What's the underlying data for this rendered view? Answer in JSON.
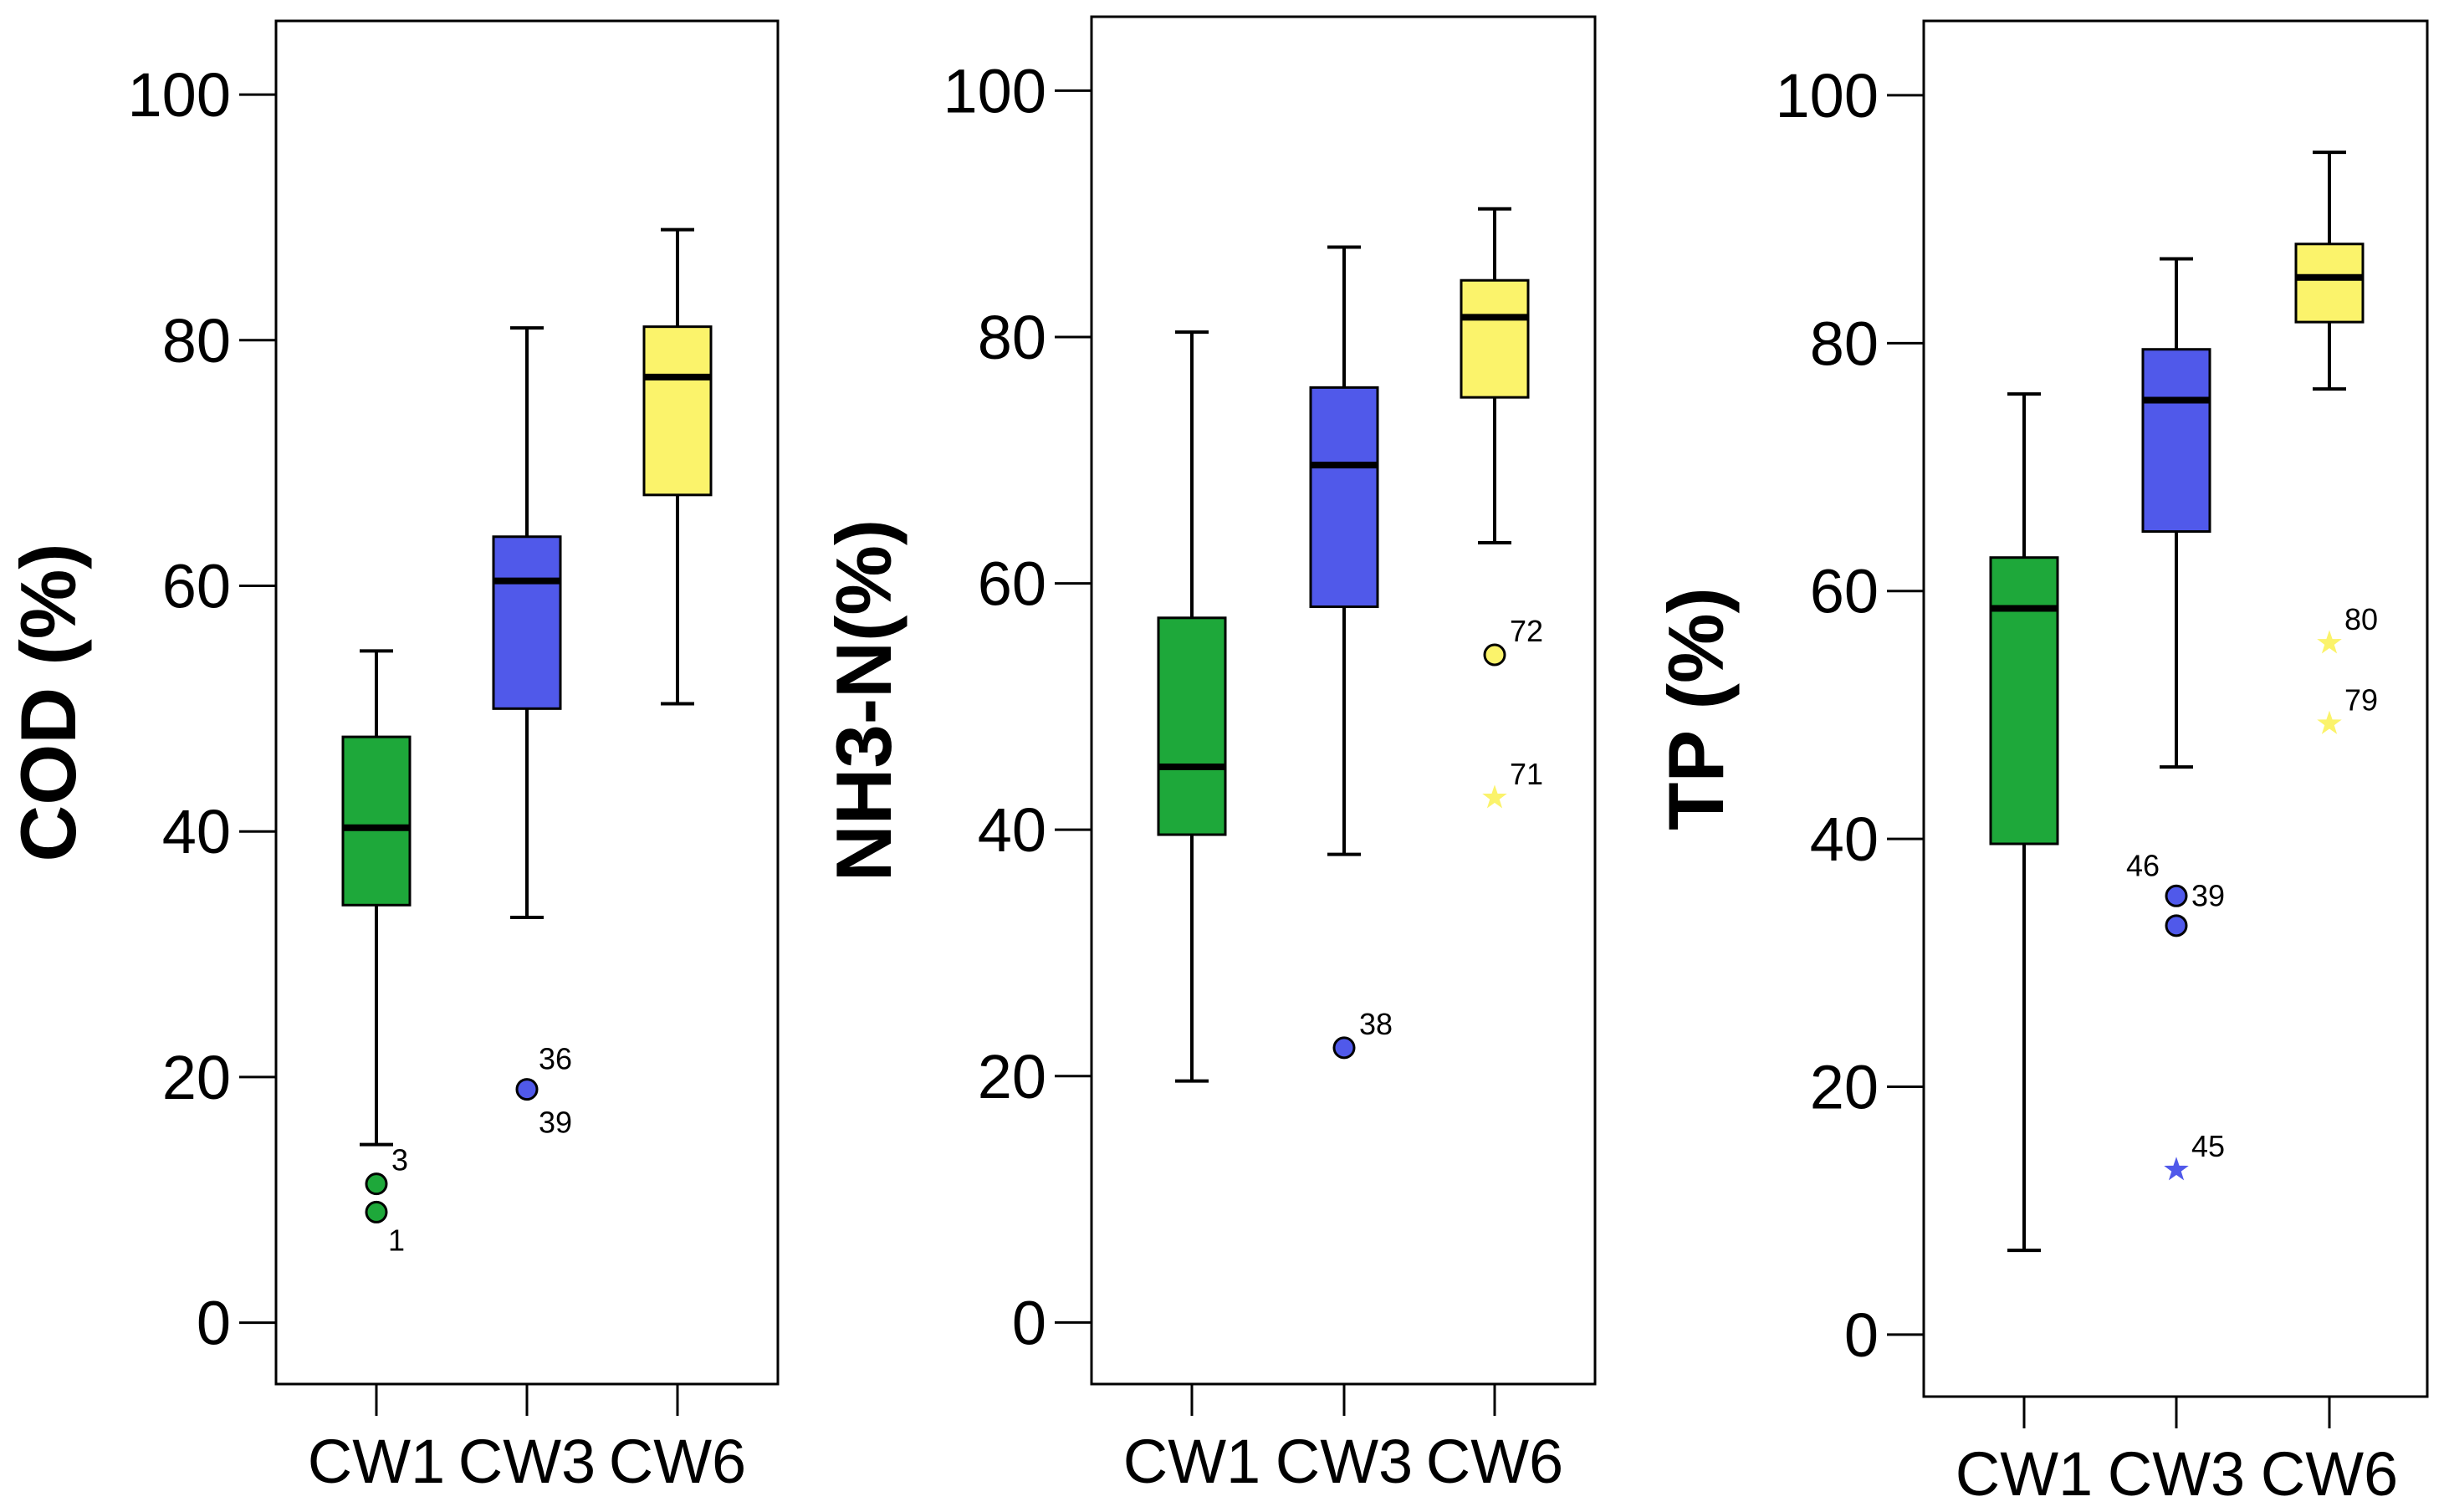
{
  "chart_data": [
    {
      "type": "boxplot",
      "ylabel": "COD (%)",
      "ylim": [
        -5,
        106
      ],
      "yticks": [
        0,
        20,
        40,
        60,
        80,
        100
      ],
      "grid": false,
      "categories": [
        "CW1",
        "CW3",
        "CW6"
      ],
      "boxes": [
        {
          "category": "CW1",
          "color": "#1ea83a",
          "whisker_low": 14.5,
          "q1": 34,
          "median": 40.3,
          "q3": 47.7,
          "whisker_high": 54.7,
          "outliers": [
            {
              "value": 11.3,
              "marker": "circle",
              "labels": [
                "3"
              ],
              "label_pos": "right-above"
            },
            {
              "value": 9.0,
              "marker": "circle",
              "labels": [
                "1"
              ],
              "label_pos": "right-below"
            }
          ]
        },
        {
          "category": "CW3",
          "color": "#5059ea",
          "whisker_low": 33,
          "q1": 50,
          "median": 60.4,
          "q3": 64,
          "whisker_high": 81,
          "outliers": [
            {
              "value": 19.0,
              "marker": "circle",
              "labels": [
                "36",
                "39"
              ],
              "label_pos": "right-both"
            }
          ]
        },
        {
          "category": "CW6",
          "color": "#fbf36b",
          "whisker_low": 50.4,
          "q1": 67.4,
          "median": 77,
          "q3": 81.1,
          "whisker_high": 89,
          "outliers": []
        }
      ]
    },
    {
      "type": "boxplot",
      "ylabel": "NH3-N(%)",
      "ylim": [
        -5,
        106
      ],
      "yticks": [
        0,
        20,
        40,
        60,
        80,
        100
      ],
      "grid": false,
      "categories": [
        "CW1",
        "CW3",
        "CW6"
      ],
      "boxes": [
        {
          "category": "CW1",
          "color": "#1ea83a",
          "whisker_low": 19.6,
          "q1": 39.6,
          "median": 45.1,
          "q3": 57.2,
          "whisker_high": 80.4,
          "outliers": []
        },
        {
          "category": "CW3",
          "color": "#5059ea",
          "whisker_low": 38,
          "q1": 58.1,
          "median": 69.6,
          "q3": 75.9,
          "whisker_high": 87.3,
          "outliers": [
            {
              "value": 22.3,
              "marker": "circle",
              "labels": [
                "38"
              ],
              "label_pos": "right-above"
            }
          ]
        },
        {
          "category": "CW6",
          "color": "#fbf36b",
          "whisker_low": 63.3,
          "q1": 75.1,
          "median": 81.6,
          "q3": 84.6,
          "whisker_high": 90.4,
          "outliers": [
            {
              "value": 54.2,
              "marker": "circle",
              "labels": [
                "72"
              ],
              "label_pos": "right-above"
            },
            {
              "value": 42.6,
              "marker": "star",
              "labels": [
                "71"
              ],
              "label_pos": "right-above"
            }
          ]
        }
      ]
    },
    {
      "type": "boxplot",
      "ylabel": "TP (%)",
      "ylim": [
        -5,
        106
      ],
      "yticks": [
        0,
        20,
        40,
        60,
        80,
        100
      ],
      "grid": false,
      "categories": [
        "CW1",
        "CW3",
        "CW6"
      ],
      "boxes": [
        {
          "category": "CW1",
          "color": "#1ea83a",
          "whisker_low": 6.8,
          "q1": 39.6,
          "median": 58.6,
          "q3": 62.7,
          "whisker_high": 75.9,
          "outliers": []
        },
        {
          "category": "CW3",
          "color": "#5059ea",
          "whisker_low": 45.8,
          "q1": 64.8,
          "median": 75.4,
          "q3": 79.5,
          "whisker_high": 86.8,
          "outliers": [
            {
              "value": 35.4,
              "marker": "circle",
              "labels": [
                "46",
                "39"
              ],
              "label_pos": "left-right"
            },
            {
              "value": 33.0,
              "marker": "circle",
              "labels": [],
              "label_pos": "none"
            },
            {
              "value": 13.3,
              "marker": "star",
              "labels": [
                "45"
              ],
              "label_pos": "right-above"
            }
          ]
        },
        {
          "category": "CW6",
          "color": "#fbf36b",
          "whisker_low": 76.3,
          "q1": 81.7,
          "median": 85.3,
          "q3": 88,
          "whisker_high": 95.4,
          "outliers": [
            {
              "value": 55.8,
              "marker": "star",
              "labels": [
                "80"
              ],
              "label_pos": "right-above"
            },
            {
              "value": 49.3,
              "marker": "star",
              "labels": [
                "79"
              ],
              "label_pos": "right-above"
            }
          ]
        }
      ]
    }
  ]
}
